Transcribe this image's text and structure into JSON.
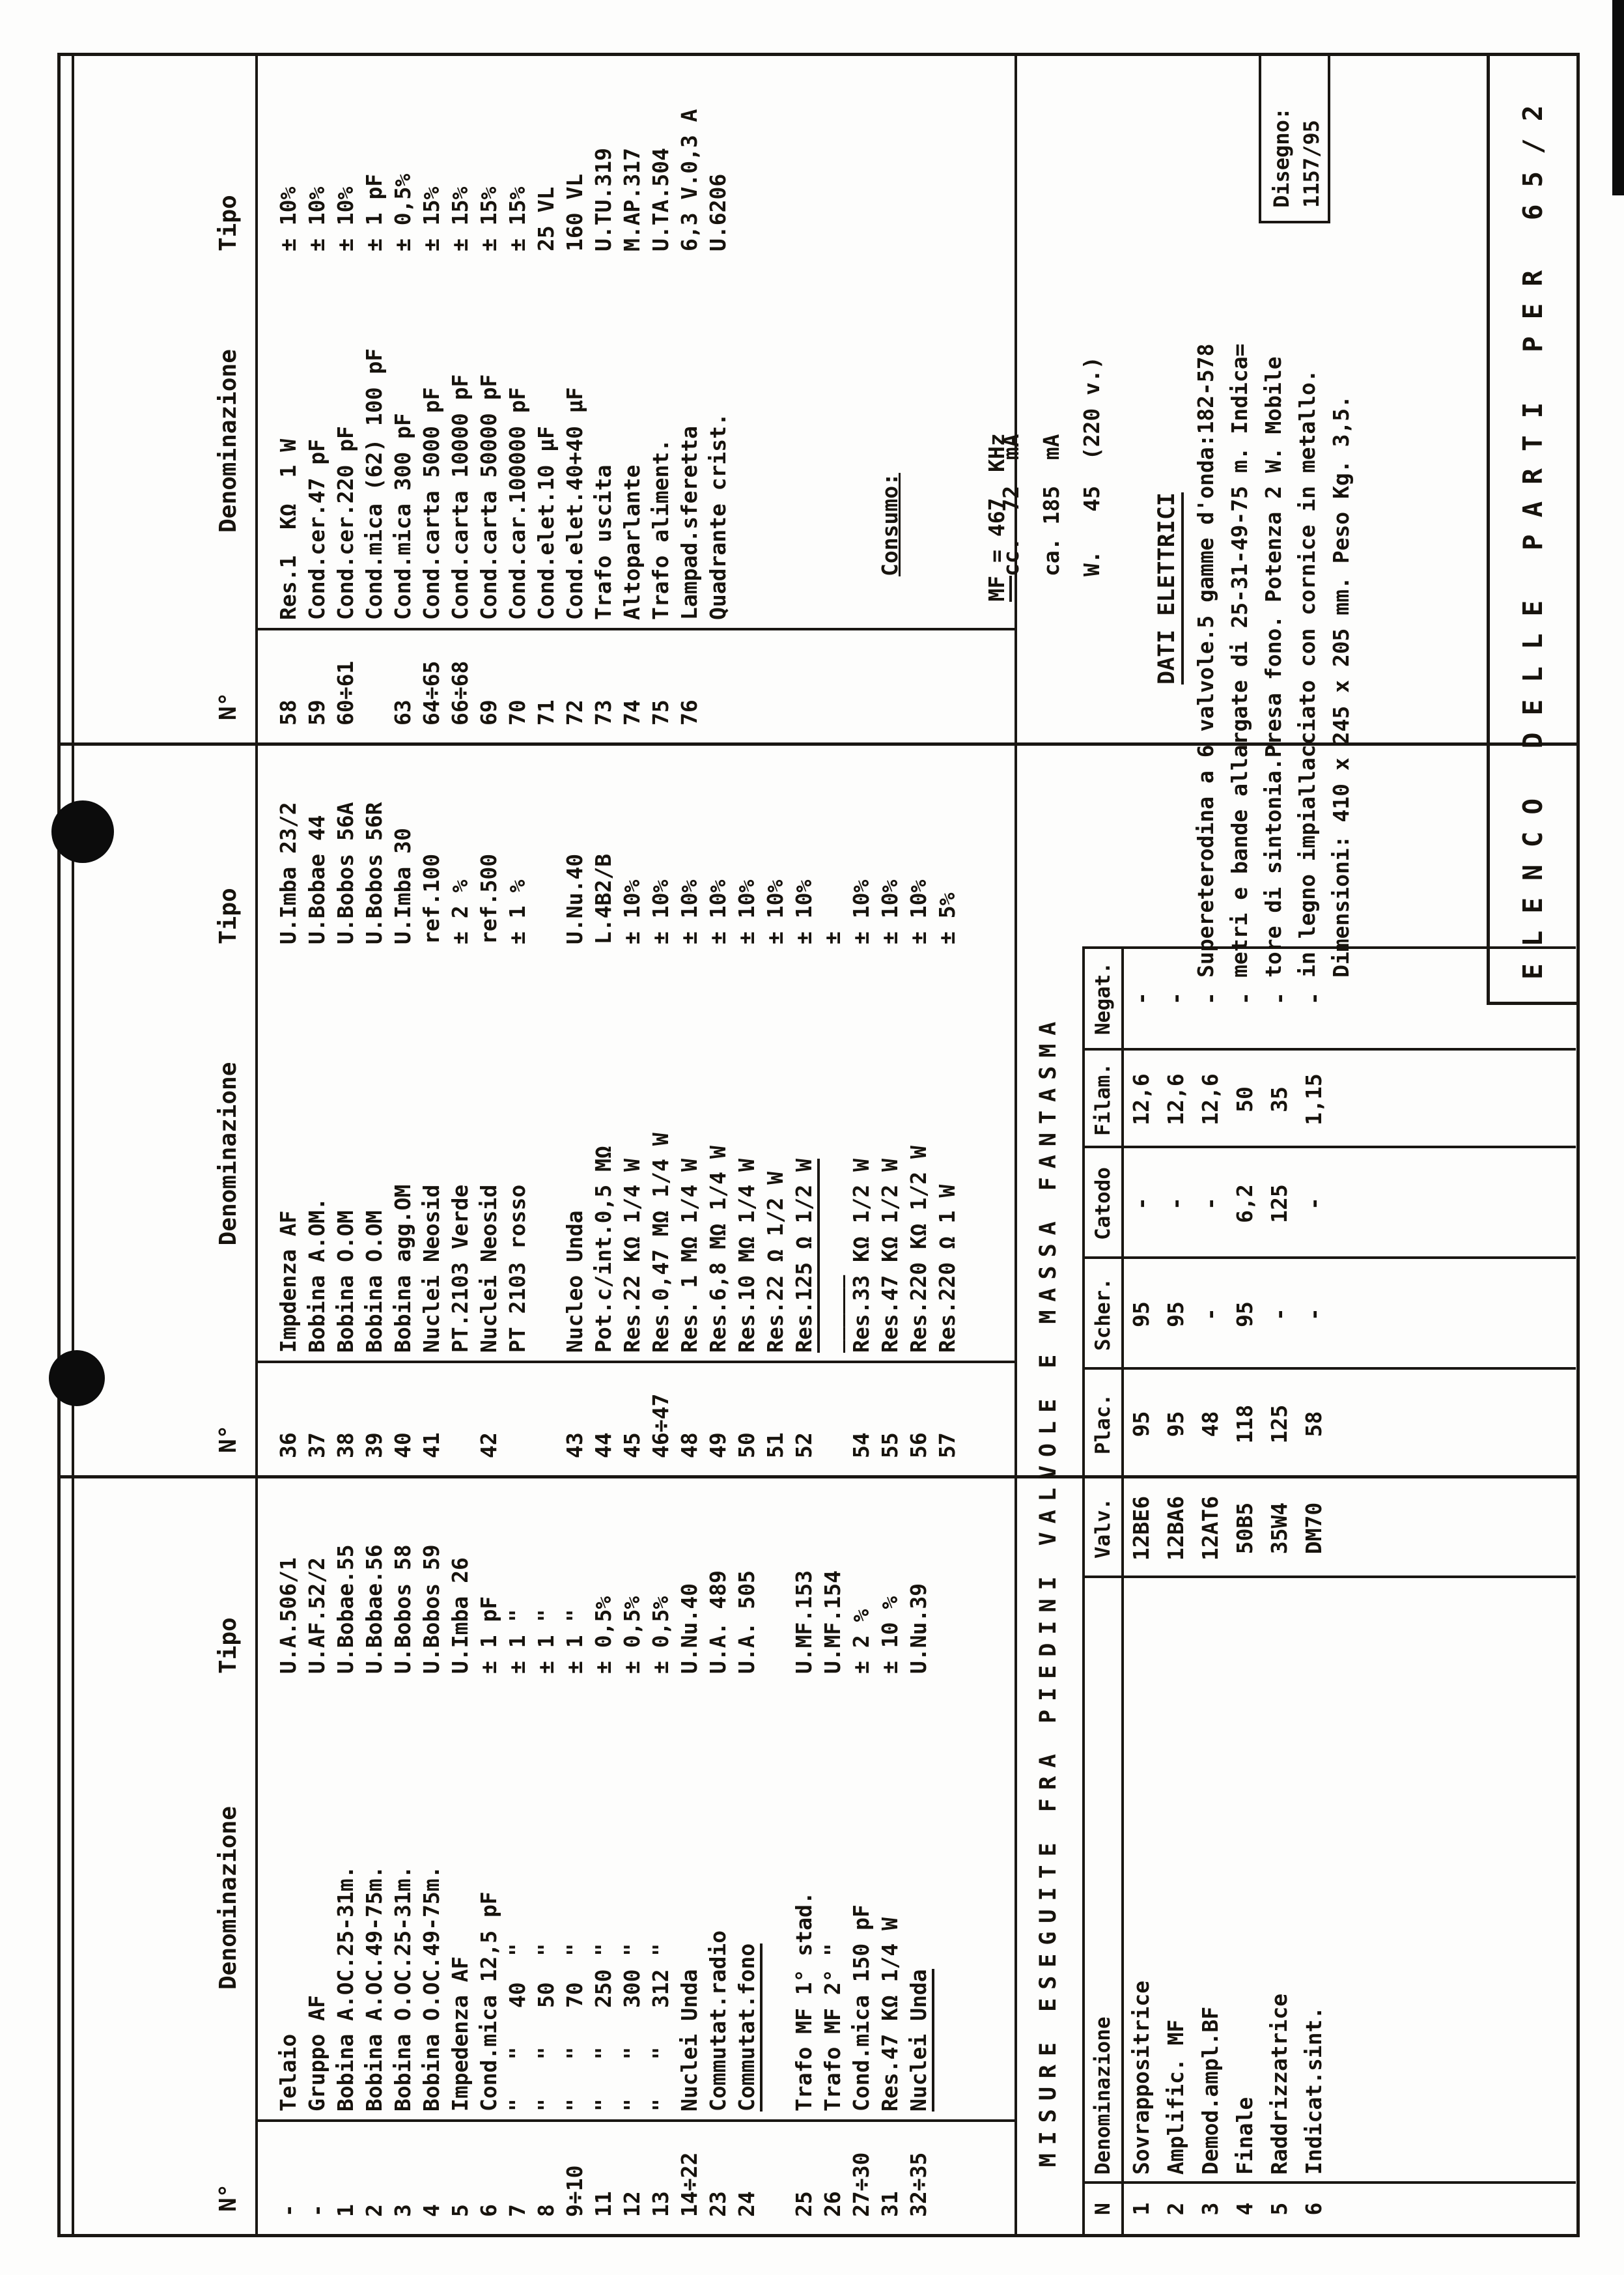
{
  "doc": {
    "main_headers": {
      "num": "N°",
      "denom": "Denominazione",
      "tipo": "Tipo"
    },
    "groups": [
      {
        "rows": [
          {
            "n": "-",
            "d": "Telaio",
            "t": "U.A.506/1"
          },
          {
            "n": "-",
            "d": "Gruppo AF",
            "t": "U.AF.52/2"
          },
          {
            "n": "1",
            "d": "Bobina A.OC.25-31m.",
            "t": "U.Bobae.55"
          },
          {
            "n": "2",
            "d": "Bobina A.OC.49-75m.",
            "t": "U.Bobae.56"
          },
          {
            "n": "3",
            "d": "Bobina O.OC.25-31m.",
            "t": "U.Bobos 58"
          },
          {
            "n": "4",
            "d": "Bobina O.OC.49-75m.",
            "t": "U.Bobos 59"
          },
          {
            "n": "5",
            "d": "Impedenza AF",
            "t": "U.Imba 26"
          },
          {
            "n": "6",
            "d": "Cond.mica 12,5 pF",
            "t": "± 1 pF"
          },
          {
            "n": "7",
            "d": "\"   \"   40  \"",
            "t": "± 1 \""
          },
          {
            "n": "8",
            "d": "\"   \"   50  \"",
            "t": "± 1 \""
          },
          {
            "n": "9÷10",
            "d": "\"   \"   70  \"",
            "t": "± 1 \""
          },
          {
            "n": "11",
            "d": "\"   \"   250 \"",
            "t": "± 0,5%"
          },
          {
            "n": "12",
            "d": "\"   \"   300 \"",
            "t": "± 0,5%"
          },
          {
            "n": "13",
            "d": "\"   \"   312 \"",
            "t": "± 0,5%"
          },
          {
            "n": "14÷22",
            "d": "Nuclei Unda",
            "t": "U.Nu.40"
          },
          {
            "n": "23",
            "d": "Commutat.radio",
            "t": "U.A. 489"
          },
          {
            "n": "24",
            "d": "Commutat.fono",
            "t": "U.A. 505",
            "u": true
          },
          {
            "gap": true
          },
          {
            "n": "25",
            "d": "Trafo MF 1° stad.",
            "t": "U.MF.153"
          },
          {
            "n": "26",
            "d": "Trafo MF 2° \"",
            "t": "U.MF.154"
          },
          {
            "n": "27÷30",
            "d": "Cond.mica 150 pF",
            "t": "± 2 %"
          },
          {
            "n": "31",
            "d": "Res.47 KΩ 1/4 W",
            "t": "± 10 %"
          },
          {
            "n": "32÷35",
            "d": "Nuclei Unda",
            "t": "U.Nu.39",
            "u": true
          }
        ]
      },
      {
        "rows": [
          {
            "n": "36",
            "d": "Impdenza AF",
            "t": "U.Imba 23/2"
          },
          {
            "n": "37",
            "d": "Bobina A.OM.",
            "t": "U.Bobae 44"
          },
          {
            "n": "38",
            "d": "Bobina O.OM",
            "t": "U.Bobos 56A"
          },
          {
            "n": "39",
            "d": "Bobina O.OM",
            "t": "U.Bobos 56R"
          },
          {
            "n": "40",
            "d": "Bobina agg.OM",
            "t": "U.Imba 30"
          },
          {
            "n": "41",
            "d": "Nuclei Neosid",
            "t": "ref.100"
          },
          {
            "n": "",
            "d": "PT.2103 Verde",
            "t": "± 2 %"
          },
          {
            "n": "42",
            "d": "Nuclei Neosid",
            "t": "ref.500"
          },
          {
            "n": "",
            "d": "PT 2103 rosso",
            "t": "± 1 %"
          },
          {
            "gap": true
          },
          {
            "n": "43",
            "d": "Nucleo Unda",
            "t": "U.Nu.40"
          },
          {
            "n": "44",
            "d": "Pot.c/int.0,5 MΩ",
            "t": "L.4B2/B"
          },
          {
            "n": "45",
            "d": "Res.22 KΩ 1/4 W",
            "t": "± 10%"
          },
          {
            "n": "46÷47",
            "d": "Res.0,47 MΩ 1/4 W",
            "t": "± 10%"
          },
          {
            "n": "48",
            "d": "Res. 1 MΩ 1/4 W",
            "t": "± 10%"
          },
          {
            "n": "49",
            "d": "Res.6,8 MΩ 1/4 W",
            "t": "± 10%"
          },
          {
            "n": "50",
            "d": "Res.10 MΩ 1/4 W",
            "t": "± 10%"
          },
          {
            "n": "51",
            "d": "Res.22 Ω 1/2 W",
            "t": "± 10%"
          },
          {
            "n": "52",
            "d": "Res.125 Ω 1/2 W",
            "t": "± 10%",
            "u": true
          },
          {
            "n": "",
            "d": "______",
            "t": "±"
          },
          {
            "n": "54",
            "d": "Res.33 KΩ 1/2 W",
            "t": "± 10%"
          },
          {
            "n": "55",
            "d": "Res.47 KΩ 1/2 W",
            "t": "± 10%"
          },
          {
            "n": "56",
            "d": "Res.220 KΩ 1/2 W",
            "t": "± 10%"
          },
          {
            "n": "57",
            "d": "Res.220 Ω 1 W",
            "t": "± 5%"
          }
        ]
      },
      {
        "rows": [
          {
            "n": "58",
            "d": "Res.1  KΩ  1 W",
            "t": "± 10%"
          },
          {
            "n": "59",
            "d": "Cond.cer.47 pF",
            "t": "± 10%"
          },
          {
            "n": "60÷61",
            "d": "Cond.cer.220 pF",
            "t": "± 10%"
          },
          {
            "n": "",
            "d": "Cond.mica (62) 100 pF",
            "t": "± 1 pF"
          },
          {
            "n": "63",
            "d": "Cond.mica 300 pF",
            "t": "± 0,5%"
          },
          {
            "n": "64÷65",
            "d": "Cond.carta 5000 pF",
            "t": "± 15%"
          },
          {
            "n": "66÷68",
            "d": "Cond.carta 10000 pF",
            "t": "± 15%"
          },
          {
            "n": "69",
            "d": "Cond.carta 50000 pF",
            "t": "± 15%"
          },
          {
            "n": "70",
            "d": "Cond.car.100000 pF",
            "t": "± 15%"
          },
          {
            "n": "71",
            "d": "Cond.elet.10 µF",
            "t": "25 VL"
          },
          {
            "n": "72",
            "d": "Cond.elet.40+40 µF",
            "t": "160 VL"
          },
          {
            "n": "73",
            "d": "Trafo uscita",
            "t": "U.TU.319"
          },
          {
            "n": "74",
            "d": "Altoparlante",
            "t": "M.AP.317"
          },
          {
            "n": "75",
            "d": "Trafo aliment.",
            "t": "U.TA.504"
          },
          {
            "n": "76",
            "d": "Lampad.sferetta",
            "t": "6,3 V.0,3 A"
          },
          {
            "n": "",
            "d": "Quadrante crist.",
            "t": "U.6206"
          }
        ]
      }
    ],
    "consumo": {
      "title": "Consumo:",
      "lines": [
        "cc.  72  mA",
        "ca. 185  mA",
        "W.   45  (220 v.)"
      ]
    },
    "mf": {
      "pre": "MF",
      "rest": " = 467  KHz"
    },
    "misure": {
      "title": "MISURE ESEGUITE FRA PIEDINI VALVOLE E MASSA FANTASMA",
      "headers": [
        "N",
        "Denominazione",
        "Valv.",
        "Plac.",
        "Scher.",
        "Catodo",
        "Filam.",
        "Negat."
      ],
      "rows": [
        [
          "1",
          "Sovrappositrice",
          "12BE6",
          "95",
          "95",
          "-",
          "12,6",
          "-"
        ],
        [
          "2",
          "Amplific. MF",
          "12BA6",
          "95",
          "95",
          "-",
          "12,6",
          "-"
        ],
        [
          "3",
          "Demod.ampl.BF",
          "12AT6",
          "48",
          "-",
          "-",
          "12,6",
          "-"
        ],
        [
          "4",
          "Finale",
          "50B5",
          "118",
          "95",
          "6,2",
          "50",
          "-"
        ],
        [
          "5",
          "Raddrizzatrice",
          "35W4",
          "125",
          "-",
          "125",
          "35",
          "-"
        ],
        [
          "6",
          "Indicat.sint.",
          "DM70",
          "58",
          "-",
          "-",
          "1,15",
          "-"
        ]
      ]
    },
    "dati": {
      "title": "DATI ELETTRICI",
      "lines": [
        "Supereterodina a 6 valvole.5 gamme d'onda:182-578",
        "metri e bande allargate di 25-31-49-75 m. Indica=",
        "tore di sintonia.Presa fono. Potenza 2 W. Mobile",
        "in legno impiallacciato con cornice in metallo.",
        "Dimensioni: 410 x 245 x 205 mm. Peso Kg. 3,5."
      ]
    },
    "elenco": "ELENCO DELLE PARTI PER 65/2",
    "disegno": {
      "label": "Disegno:",
      "value": "1157/95"
    }
  }
}
